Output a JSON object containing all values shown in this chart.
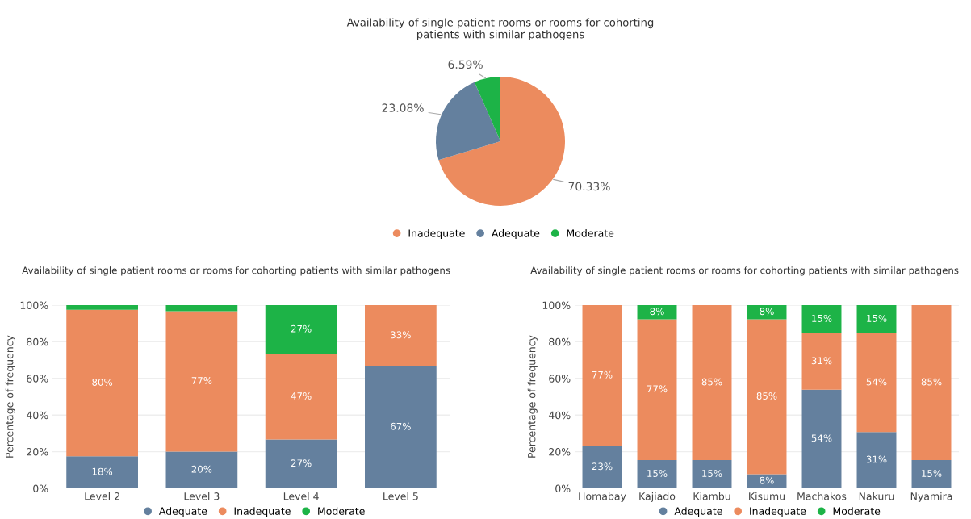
{
  "chart_data": [
    {
      "type": "pie",
      "title": "Availability of single patient rooms or rooms for cohorting\npatients with similar pathogens",
      "categories": [
        "Inadequate",
        "Adequate",
        "Moderate"
      ],
      "values": [
        70.33,
        23.08,
        6.59
      ],
      "colors": [
        "#ec8b5e",
        "#64809e",
        "#1db347"
      ],
      "value_labels": [
        "70.33%",
        "23.08%",
        "6.59%"
      ],
      "legend": "bottom"
    },
    {
      "type": "bar",
      "stacked": true,
      "title": "Availability of single patient rooms or rooms for cohorting patients with similar pathogens",
      "ylabel": "Percentage of frequency",
      "categories": [
        "Level 2",
        "Level 3",
        "Level 4",
        "Level 5"
      ],
      "ylim": [
        0,
        100
      ],
      "yticks": [
        {
          "value": 0,
          "label": "0%"
        },
        {
          "value": 20,
          "label": "20%"
        },
        {
          "value": 40,
          "label": "40%"
        },
        {
          "value": 60,
          "label": "60%"
        },
        {
          "value": 80,
          "label": "80%"
        },
        {
          "value": 100,
          "label": "100%"
        }
      ],
      "grid": "y",
      "legend": "bottom",
      "series": [
        {
          "name": "Adequate",
          "color": "#64809e",
          "values": [
            17.5,
            20,
            26.67,
            66.67
          ],
          "value_labels": [
            "18%",
            "20%",
            "27%",
            "67%"
          ]
        },
        {
          "name": "Inadequate",
          "color": "#ec8b5e",
          "values": [
            80,
            76.67,
            46.66,
            33.33
          ],
          "value_labels": [
            "80%",
            "77%",
            "47%",
            "33%"
          ]
        },
        {
          "name": "Moderate",
          "color": "#1db347",
          "values": [
            2.5,
            3.3,
            26.67,
            null
          ],
          "value_labels": [
            null,
            null,
            "27%",
            null
          ]
        }
      ]
    },
    {
      "type": "bar",
      "stacked": true,
      "title": "Availability of single patient rooms or rooms for cohorting patients with similar pathogens",
      "ylabel": "Percentage of frequency",
      "categories": [
        "Homabay",
        "Kajiado",
        "Kiambu",
        "Kisumu",
        "Machakos",
        "Nakuru",
        "Nyamira"
      ],
      "ylim": [
        0,
        100
      ],
      "yticks": [
        {
          "value": 0,
          "label": "0%"
        },
        {
          "value": 20,
          "label": "20%"
        },
        {
          "value": 40,
          "label": "40%"
        },
        {
          "value": 60,
          "label": "60%"
        },
        {
          "value": 80,
          "label": "80%"
        },
        {
          "value": 100,
          "label": "100%"
        }
      ],
      "grid": "y",
      "legend": "bottom",
      "series": [
        {
          "name": "Adequate",
          "color": "#64809e",
          "values": [
            23.08,
            15.38,
            15.38,
            7.69,
            53.85,
            30.77,
            15.38
          ],
          "value_labels": [
            "23%",
            "15%",
            "15%",
            "8%",
            "54%",
            "31%",
            "15%"
          ]
        },
        {
          "name": "Inadequate",
          "color": "#ec8b5e",
          "values": [
            76.92,
            76.92,
            84.62,
            84.62,
            30.77,
            53.85,
            84.62
          ],
          "value_labels": [
            "77%",
            "77%",
            "85%",
            "85%",
            "31%",
            "54%",
            "85%"
          ]
        },
        {
          "name": "Moderate",
          "color": "#1db347",
          "values": [
            null,
            7.69,
            null,
            7.69,
            15.38,
            15.38,
            null
          ],
          "value_labels": [
            null,
            "8%",
            null,
            "8%",
            "15%",
            "15%",
            null
          ]
        }
      ]
    }
  ]
}
